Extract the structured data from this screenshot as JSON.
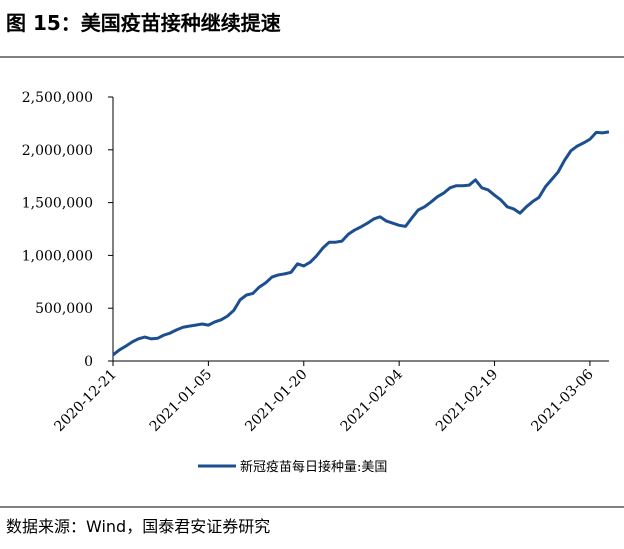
{
  "chart_data": {
    "type": "line",
    "title": "图 15：美国疫苗接种继续提速",
    "source": "数据来源：Wind，国泰君安证券研究",
    "x": [
      "2020-12-21",
      "2020-12-22",
      "2020-12-23",
      "2020-12-24",
      "2020-12-25",
      "2020-12-26",
      "2020-12-27",
      "2020-12-28",
      "2020-12-29",
      "2020-12-30",
      "2020-12-31",
      "2021-01-01",
      "2021-01-02",
      "2021-01-03",
      "2021-01-04",
      "2021-01-05",
      "2021-01-06",
      "2021-01-07",
      "2021-01-08",
      "2021-01-09",
      "2021-01-10",
      "2021-01-11",
      "2021-01-12",
      "2021-01-13",
      "2021-01-14",
      "2021-01-15",
      "2021-01-16",
      "2021-01-17",
      "2021-01-18",
      "2021-01-19",
      "2021-01-20",
      "2021-01-21",
      "2021-01-22",
      "2021-01-23",
      "2021-01-24",
      "2021-01-25",
      "2021-01-26",
      "2021-01-27",
      "2021-01-28",
      "2021-01-29",
      "2021-01-30",
      "2021-01-31",
      "2021-02-01",
      "2021-02-02",
      "2021-02-03",
      "2021-02-04",
      "2021-02-05",
      "2021-02-06",
      "2021-02-07",
      "2021-02-08",
      "2021-02-09",
      "2021-02-10",
      "2021-02-11",
      "2021-02-12",
      "2021-02-13",
      "2021-02-14",
      "2021-02-15",
      "2021-02-16",
      "2021-02-17",
      "2021-02-18",
      "2021-02-19",
      "2021-02-20",
      "2021-02-21",
      "2021-02-22",
      "2021-02-23",
      "2021-02-24",
      "2021-02-25",
      "2021-02-26",
      "2021-02-27",
      "2021-02-28",
      "2021-03-01",
      "2021-03-02",
      "2021-03-03",
      "2021-03-04",
      "2021-03-05",
      "2021-03-06",
      "2021-03-07",
      "2021-03-08",
      "2021-03-09"
    ],
    "series": [
      {
        "name": "新冠疫苗每日接种量:美国",
        "color": "#1c4f8f",
        "values": [
          57000,
          105000,
          140000,
          180000,
          210000,
          227000,
          210000,
          215000,
          245000,
          265000,
          295000,
          320000,
          330000,
          340000,
          350000,
          340000,
          370000,
          390000,
          425000,
          480000,
          580000,
          625000,
          640000,
          700000,
          740000,
          795000,
          815000,
          825000,
          840000,
          920000,
          900000,
          935000,
          995000,
          1070000,
          1125000,
          1125000,
          1135000,
          1200000,
          1240000,
          1270000,
          1305000,
          1345000,
          1365000,
          1325000,
          1305000,
          1285000,
          1275000,
          1355000,
          1430000,
          1460000,
          1505000,
          1555000,
          1590000,
          1640000,
          1660000,
          1660000,
          1665000,
          1715000,
          1640000,
          1620000,
          1570000,
          1525000,
          1460000,
          1440000,
          1400000,
          1460000,
          1510000,
          1550000,
          1650000,
          1720000,
          1790000,
          1900000,
          1990000,
          2035000,
          2065000,
          2100000,
          2165000,
          2160000,
          2170000
        ]
      }
    ],
    "xlim": [
      "2020-12-21",
      "2021-03-09"
    ],
    "xticks": [
      "2020-12-21",
      "2021-01-05",
      "2021-01-20",
      "2021-02-04",
      "2021-02-19",
      "2021-03-06"
    ],
    "ylim": [
      0,
      2500000
    ],
    "yticks": [
      0,
      {
        "value": 500000,
        "label": "500,000"
      },
      {
        "value": 1000000,
        "label": "1,000,000"
      },
      {
        "value": 1500000,
        "label": "1,500,000"
      },
      {
        "value": 2000000,
        "label": "2,000,000"
      },
      {
        "value": 2500000,
        "label": "2,500,000"
      }
    ],
    "grid": false,
    "legend": "bottom"
  }
}
